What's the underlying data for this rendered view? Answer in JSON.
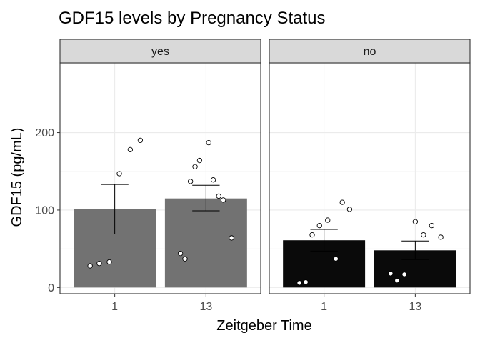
{
  "chart_data": {
    "type": "bar",
    "title": "GDF15 levels by Pregnancy Status",
    "xlabel": "Zeitgeber Time",
    "ylabel": "GDF15 (pg/mL)",
    "ylim": [
      -8,
      290
    ],
    "yticks": [
      0,
      100,
      200
    ],
    "categories": [
      "1",
      "13"
    ],
    "grid": true,
    "colors": {
      "yes": "#727272",
      "no": "#0a0a0a",
      "strip_bg": "#d9d9d9",
      "panel_border": "#333333",
      "grid_major": "#ebebeb",
      "grid_minor": "#f5f5f5",
      "point_fill": "#ffffff",
      "point_stroke": "#000000",
      "errorbar": "#000000"
    },
    "panels": [
      {
        "label": "yes",
        "bar_color": "#727272",
        "bars": [
          {
            "category": "1",
            "mean": 101,
            "err_low": 69,
            "err_high": 133,
            "points": [
              [
                -0.27,
                28
              ],
              [
                -0.17,
                31
              ],
              [
                -0.06,
                33
              ],
              [
                0.05,
                147
              ],
              [
                0.17,
                178
              ],
              [
                0.28,
                190
              ]
            ]
          },
          {
            "category": "13",
            "mean": 115,
            "err_low": 99,
            "err_high": 132,
            "points": [
              [
                -0.28,
                44
              ],
              [
                -0.23,
                37
              ],
              [
                -0.17,
                137
              ],
              [
                -0.12,
                156
              ],
              [
                -0.07,
                164
              ],
              [
                0.03,
                187
              ],
              [
                0.08,
                139
              ],
              [
                0.14,
                118
              ],
              [
                0.19,
                113
              ],
              [
                0.28,
                64
              ]
            ]
          }
        ]
      },
      {
        "label": "no",
        "bar_color": "#0a0a0a",
        "bars": [
          {
            "category": "1",
            "mean": 61,
            "err_low": 47,
            "err_high": 75,
            "points": [
              [
                -0.27,
                6
              ],
              [
                -0.2,
                7
              ],
              [
                -0.13,
                68
              ],
              [
                -0.05,
                80
              ],
              [
                0.04,
                87
              ],
              [
                0.13,
                37
              ],
              [
                0.2,
                110
              ],
              [
                0.28,
                101
              ]
            ]
          },
          {
            "category": "13",
            "mean": 48,
            "err_low": 36,
            "err_high": 60,
            "points": [
              [
                -0.27,
                18
              ],
              [
                -0.2,
                9
              ],
              [
                -0.12,
                17
              ],
              [
                0.0,
                85
              ],
              [
                0.09,
                68
              ],
              [
                0.18,
                80
              ],
              [
                0.28,
                65
              ]
            ]
          }
        ]
      }
    ]
  }
}
